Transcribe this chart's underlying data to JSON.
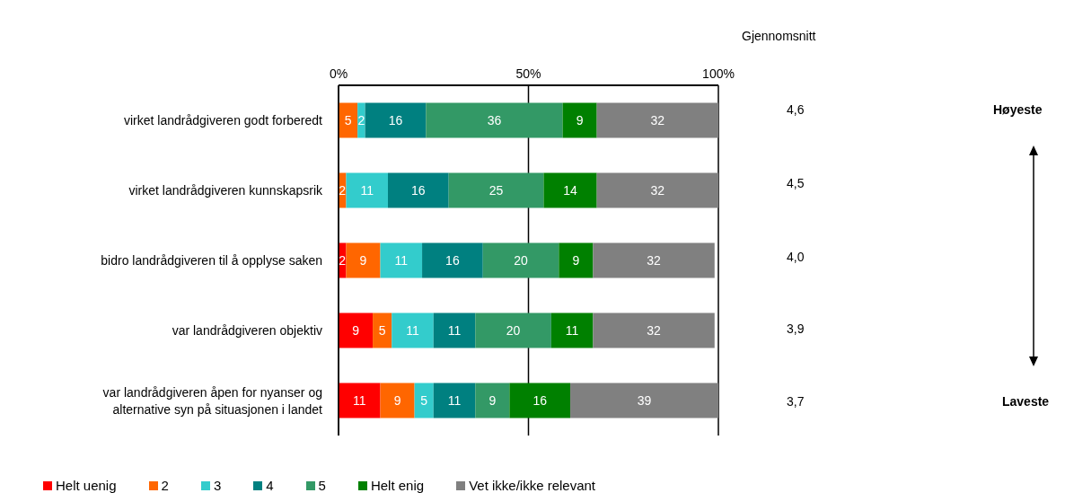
{
  "chart_data": {
    "type": "bar",
    "orientation": "horizontal",
    "stacked": true,
    "data_labels": true,
    "grid": "x",
    "legend": "bottom left",
    "categories": [
      "virket landrådgiveren godt forberedt",
      "virket landrådgiveren kunnskapsrik",
      "bidro landrådgiveren til å opplyse saken",
      "var landrådgiveren objektiv",
      "var landrådgiveren åpen for nyanser og\nalternative syn på situasjonen i landet"
    ],
    "xlim": [
      0,
      100
    ],
    "xticks": [
      {
        "value": 0,
        "label": "0%"
      },
      {
        "value": 50,
        "label": "50%"
      },
      {
        "value": 100,
        "label": "100%"
      }
    ],
    "series": [
      {
        "name": "Helt uenig",
        "color": "#ff0000",
        "values": [
          null,
          null,
          2,
          9,
          11
        ]
      },
      {
        "name": "2",
        "color": "#ff6600",
        "values": [
          5,
          2,
          9,
          5,
          9
        ]
      },
      {
        "name": "3",
        "color": "#33cccc",
        "values": [
          2,
          11,
          11,
          11,
          5
        ]
      },
      {
        "name": "4",
        "color": "#008080",
        "values": [
          16,
          16,
          16,
          11,
          11
        ]
      },
      {
        "name": "5",
        "color": "#339966",
        "values": [
          36,
          25,
          20,
          20,
          9
        ]
      },
      {
        "name": "Helt enig",
        "color": "#008000",
        "values": [
          9,
          14,
          9,
          11,
          16
        ]
      },
      {
        "name": "Vet ikke/ikke relevant",
        "color": "#808080",
        "values": [
          32,
          32,
          32,
          32,
          39
        ]
      }
    ],
    "annotations": [
      "Gjennomsnitt",
      "4,6",
      "4,5",
      "4,0",
      "3,9",
      "3,7",
      "Høyeste",
      "Laveste"
    ]
  }
}
